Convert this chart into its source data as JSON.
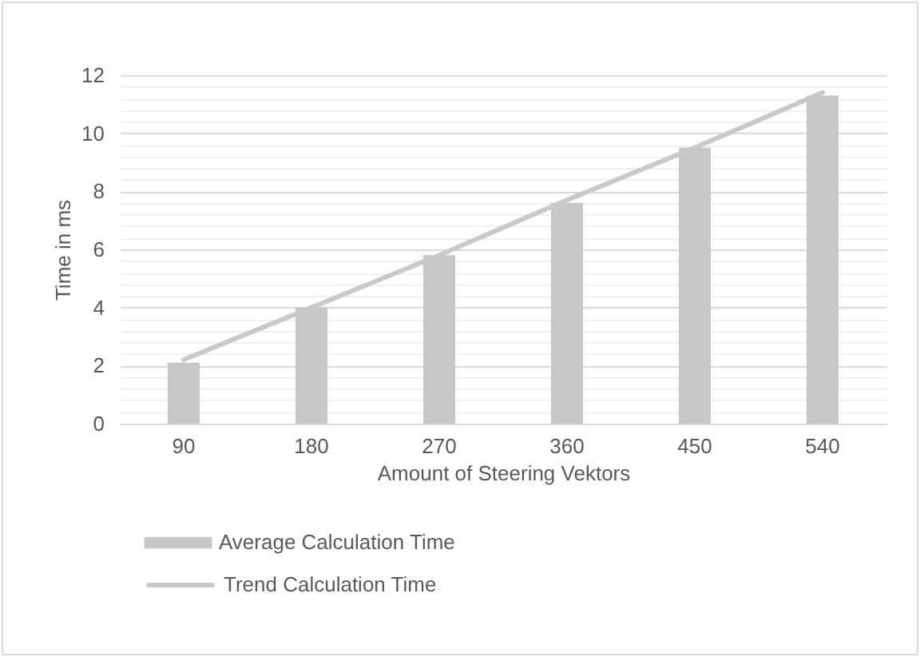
{
  "chart_data": {
    "type": "bar",
    "xlabel": "Amount of Steering Vektors",
    "ylabel": "Time in ms",
    "categories": [
      "90",
      "180",
      "270",
      "360",
      "450",
      "540"
    ],
    "series": [
      {
        "name": "Average Calculation Time",
        "color": "#c6c7c9",
        "values": [
          2.1,
          4.0,
          5.8,
          7.6,
          9.5,
          11.3
        ]
      },
      {
        "name": "Trend Calculation Time",
        "type": "line",
        "color": "#c9c9c9",
        "values": [
          2.2,
          4.0,
          5.8,
          7.7,
          9.5,
          11.4
        ]
      }
    ],
    "ylim": [
      0,
      12
    ],
    "yticks": [
      0,
      {
        "value": 0.4,
        "label": null
      },
      {
        "value": 0.8,
        "label": null
      },
      {
        "value": 1.2,
        "label": null
      },
      {
        "value": 1.6,
        "label": null
      },
      2,
      {
        "value": 2.4,
        "label": null
      },
      {
        "value": 2.8,
        "label": null
      },
      {
        "value": 3.2,
        "label": null
      },
      {
        "value": 3.6,
        "label": null
      },
      4,
      {
        "value": 4.4,
        "label": null
      },
      {
        "value": 4.8,
        "label": null
      },
      {
        "value": 5.2,
        "label": null
      },
      {
        "value": 5.6,
        "label": null
      },
      6,
      {
        "value": 6.4,
        "label": null
      },
      {
        "value": 6.8,
        "label": null
      },
      {
        "value": 7.2,
        "label": null
      },
      {
        "value": 7.6,
        "label": null
      },
      8,
      {
        "value": 8.4,
        "label": null
      },
      {
        "value": 8.8,
        "label": null
      },
      {
        "value": 9.2,
        "label": null
      },
      {
        "value": 9.6,
        "label": null
      },
      10,
      {
        "value": 10.4,
        "label": null
      },
      {
        "value": 10.8,
        "label": null
      },
      {
        "value": 11.2,
        "label": null
      },
      {
        "value": 11.6,
        "label": null
      },
      12
    ],
    "grid": true,
    "legend": "bottom"
  }
}
